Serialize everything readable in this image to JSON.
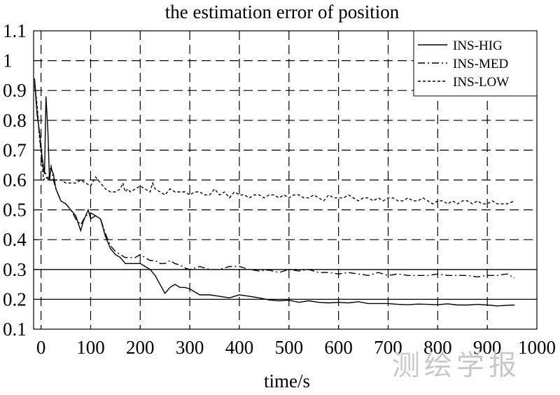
{
  "chart_data": {
    "type": "line",
    "title": "the estimation error of position",
    "xlabel": "time/s",
    "ylabel": "",
    "xlim": [
      -15,
      1000
    ],
    "ylim": [
      0.1,
      1.1
    ],
    "xticks": [
      0,
      100,
      200,
      300,
      400,
      500,
      600,
      700,
      800,
      900,
      1000
    ],
    "yticks": [
      0.1,
      0.2,
      0.3,
      0.4,
      0.5,
      0.6,
      0.7,
      0.8,
      0.9,
      1.0,
      1.1
    ],
    "ytick_labels": [
      "0.1",
      "0.2",
      "0.3",
      "0.4",
      "0.5",
      "0.6",
      "0.7",
      "0.8",
      "0.9",
      "1",
      "1.1"
    ],
    "grid": true,
    "reference_lines_y": [
      0.2,
      0.3
    ],
    "legend_position": "top-right",
    "series": [
      {
        "name": "INS-HIG",
        "style": "solid",
        "x": [
          -13,
          -8,
          -3,
          2,
          7,
          10,
          14,
          17,
          20,
          25,
          30,
          40,
          50,
          60,
          70,
          80,
          85,
          90,
          95,
          100,
          110,
          120,
          130,
          140,
          150,
          160,
          170,
          180,
          190,
          200,
          210,
          220,
          230,
          240,
          250,
          260,
          270,
          280,
          290,
          300,
          320,
          340,
          360,
          380,
          400,
          420,
          440,
          460,
          480,
          500,
          520,
          540,
          560,
          580,
          600,
          620,
          640,
          660,
          680,
          700,
          720,
          740,
          760,
          780,
          800,
          820,
          840,
          860,
          880,
          900,
          920,
          940,
          955
        ],
        "y": [
          0.94,
          0.82,
          0.76,
          0.68,
          0.62,
          0.88,
          0.76,
          0.6,
          0.64,
          0.62,
          0.57,
          0.53,
          0.52,
          0.5,
          0.48,
          0.43,
          0.46,
          0.48,
          0.5,
          0.47,
          0.48,
          0.47,
          0.41,
          0.37,
          0.35,
          0.34,
          0.32,
          0.32,
          0.32,
          0.32,
          0.31,
          0.3,
          0.28,
          0.25,
          0.22,
          0.24,
          0.25,
          0.24,
          0.24,
          0.235,
          0.215,
          0.215,
          0.21,
          0.205,
          0.215,
          0.21,
          0.205,
          0.198,
          0.195,
          0.197,
          0.19,
          0.195,
          0.19,
          0.188,
          0.19,
          0.188,
          0.192,
          0.186,
          0.186,
          0.186,
          0.183,
          0.182,
          0.184,
          0.183,
          0.182,
          0.185,
          0.181,
          0.181,
          0.183,
          0.181,
          0.178,
          0.18,
          0.181
        ]
      },
      {
        "name": "INS-MED",
        "style": "dashdot",
        "x": [
          -13,
          -5,
          0,
          5,
          10,
          15,
          20,
          25,
          30,
          40,
          50,
          60,
          70,
          80,
          90,
          100,
          110,
          120,
          130,
          140,
          150,
          160,
          170,
          180,
          190,
          200,
          210,
          220,
          230,
          240,
          250,
          260,
          270,
          280,
          290,
          300,
          320,
          340,
          360,
          380,
          400,
          420,
          440,
          460,
          480,
          500,
          520,
          540,
          560,
          580,
          600,
          620,
          640,
          660,
          680,
          700,
          720,
          740,
          760,
          780,
          800,
          820,
          840,
          860,
          880,
          900,
          920,
          940,
          955
        ],
        "y": [
          0.92,
          0.78,
          0.7,
          0.63,
          0.62,
          0.6,
          0.65,
          0.6,
          0.57,
          0.53,
          0.52,
          0.5,
          0.47,
          0.45,
          0.48,
          0.49,
          0.48,
          0.47,
          0.42,
          0.38,
          0.36,
          0.35,
          0.34,
          0.34,
          0.34,
          0.35,
          0.34,
          0.33,
          0.33,
          0.32,
          0.32,
          0.33,
          0.32,
          0.315,
          0.305,
          0.3,
          0.31,
          0.3,
          0.3,
          0.31,
          0.31,
          0.3,
          0.295,
          0.298,
          0.29,
          0.3,
          0.295,
          0.3,
          0.29,
          0.29,
          0.285,
          0.29,
          0.285,
          0.28,
          0.29,
          0.28,
          0.285,
          0.28,
          0.28,
          0.28,
          0.285,
          0.28,
          0.28,
          0.28,
          0.275,
          0.28,
          0.28,
          0.285,
          0.272
        ]
      },
      {
        "name": "INS-LOW",
        "style": "dotted",
        "x": [
          -13,
          -8,
          -3,
          2,
          5,
          10,
          15,
          20,
          30,
          40,
          50,
          60,
          70,
          80,
          90,
          100,
          110,
          120,
          130,
          140,
          150,
          160,
          165,
          170,
          175,
          180,
          190,
          200,
          210,
          220,
          225,
          230,
          240,
          250,
          260,
          270,
          280,
          290,
          300,
          310,
          320,
          330,
          340,
          350,
          360,
          370,
          380,
          390,
          400,
          410,
          420,
          430,
          440,
          450,
          460,
          470,
          480,
          490,
          500,
          510,
          520,
          530,
          540,
          550,
          560,
          570,
          580,
          590,
          600,
          610,
          620,
          630,
          640,
          650,
          660,
          670,
          680,
          690,
          700,
          710,
          720,
          730,
          740,
          750,
          760,
          770,
          780,
          790,
          800,
          810,
          820,
          830,
          840,
          850,
          860,
          870,
          880,
          890,
          900,
          910,
          920,
          930,
          940,
          955
        ],
        "y": [
          0.93,
          0.85,
          0.74,
          0.66,
          0.6,
          0.61,
          0.6,
          0.6,
          0.6,
          0.6,
          0.59,
          0.59,
          0.59,
          0.6,
          0.59,
          0.58,
          0.61,
          0.59,
          0.57,
          0.56,
          0.56,
          0.57,
          0.59,
          0.56,
          0.57,
          0.56,
          0.57,
          0.58,
          0.57,
          0.56,
          0.59,
          0.57,
          0.56,
          0.55,
          0.57,
          0.56,
          0.56,
          0.56,
          0.55,
          0.56,
          0.56,
          0.55,
          0.55,
          0.57,
          0.55,
          0.56,
          0.54,
          0.56,
          0.55,
          0.55,
          0.54,
          0.55,
          0.55,
          0.54,
          0.55,
          0.55,
          0.54,
          0.55,
          0.54,
          0.55,
          0.55,
          0.54,
          0.54,
          0.55,
          0.54,
          0.53,
          0.55,
          0.54,
          0.54,
          0.54,
          0.55,
          0.54,
          0.53,
          0.54,
          0.54,
          0.53,
          0.54,
          0.53,
          0.54,
          0.54,
          0.53,
          0.53,
          0.54,
          0.53,
          0.53,
          0.54,
          0.53,
          0.52,
          0.53,
          0.53,
          0.52,
          0.53,
          0.52,
          0.53,
          0.53,
          0.52,
          0.53,
          0.52,
          0.52,
          0.53,
          0.52,
          0.52,
          0.52,
          0.53
        ]
      }
    ]
  },
  "watermark": "测绘学报"
}
